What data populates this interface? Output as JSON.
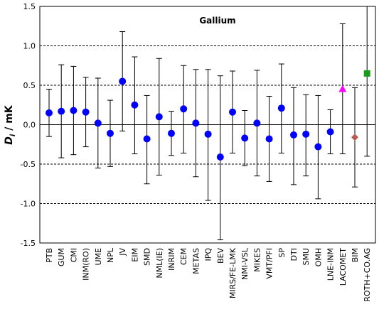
{
  "chart_data": {
    "type": "scatter",
    "title": "Gallium",
    "ylabel_main": "D",
    "ylabel_sub": "i",
    "ylabel_rest": " / mK",
    "ylim": [
      -1.5,
      1.5
    ],
    "yticks": [
      -1.5,
      -1.0,
      -0.5,
      0.0,
      0.5,
      1.0,
      1.5
    ],
    "ytick_labels": [
      "-1.5",
      "-1.0",
      "-0.5",
      "0.0",
      "0.5",
      "1.0",
      "1.5"
    ],
    "grid": "dashed at -1.0, -0.5, 0.5, 1.0; solid at 0",
    "categories": [
      "PTB",
      "GUM",
      "CMI",
      "INM(RO)",
      "UME",
      "NPL",
      "JV",
      "EIM",
      "SMD",
      "NML(IE)",
      "INRIM",
      "CEM",
      "METAS",
      "IPQ",
      "BEV",
      "MIRS/FE-LMK",
      "NMI-VSL",
      "MIKES",
      "VMT/PFI",
      "SP",
      "DTI",
      "SMU",
      "OMH",
      "LNE-INM",
      "LACOMET",
      "BIM",
      "ROTH+CO.AG"
    ],
    "values": [
      0.15,
      0.17,
      0.18,
      0.16,
      0.02,
      -0.11,
      0.55,
      0.25,
      -0.18,
      0.1,
      -0.11,
      0.2,
      0.02,
      -0.12,
      -0.41,
      0.16,
      -0.17,
      0.02,
      -0.18,
      0.21,
      -0.13,
      -0.12,
      -0.28,
      -0.09,
      0.45,
      -0.16,
      0.65
    ],
    "upper": [
      0.45,
      0.76,
      0.74,
      0.6,
      0.59,
      0.31,
      1.18,
      0.86,
      0.37,
      0.84,
      0.17,
      0.75,
      0.7,
      0.7,
      0.62,
      0.68,
      0.18,
      0.69,
      0.36,
      0.77,
      0.47,
      0.38,
      0.37,
      0.19,
      1.28,
      0.47,
      1.5
    ],
    "lower": [
      -0.15,
      -0.42,
      -0.38,
      -0.28,
      -0.55,
      -0.53,
      -0.08,
      -0.37,
      -0.75,
      -0.64,
      -0.39,
      -0.36,
      -0.66,
      -0.96,
      -1.46,
      -0.36,
      -0.52,
      -0.65,
      -0.72,
      -0.36,
      -0.76,
      -0.65,
      -0.94,
      -0.37,
      -0.37,
      -0.79,
      -0.4
    ],
    "markers": [
      "circle",
      "circle",
      "circle",
      "circle",
      "circle",
      "circle",
      "circle",
      "circle",
      "circle",
      "circle",
      "circle",
      "circle",
      "circle",
      "circle",
      "circle",
      "circle",
      "circle",
      "circle",
      "circle",
      "circle",
      "circle",
      "circle",
      "circle",
      "circle",
      "triangle",
      "diamond",
      "square"
    ],
    "colors": [
      "#0000ff",
      "#0000ff",
      "#0000ff",
      "#0000ff",
      "#0000ff",
      "#0000ff",
      "#0000ff",
      "#0000ff",
      "#0000ff",
      "#0000ff",
      "#0000ff",
      "#0000ff",
      "#0000ff",
      "#0000ff",
      "#0000ff",
      "#0000ff",
      "#0000ff",
      "#0000ff",
      "#0000ff",
      "#0000ff",
      "#0000ff",
      "#0000ff",
      "#0000ff",
      "#0000ff",
      "#ff00ff",
      "#b85c50",
      "#1a9a1a"
    ]
  }
}
